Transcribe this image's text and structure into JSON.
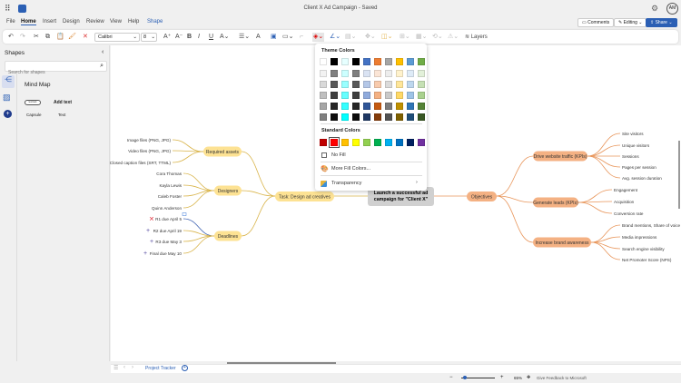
{
  "app": {
    "title": "Client X Ad Campaign - Saved",
    "avatar": "AM"
  },
  "menu": [
    "File",
    "Home",
    "Insert",
    "Design",
    "Review",
    "View",
    "Help",
    "Shape"
  ],
  "actions": {
    "comments": "Comments",
    "editing": "Editing",
    "share": "Share"
  },
  "toolbar": {
    "font": "Calibri",
    "size": "8",
    "layers": "Layers"
  },
  "shapes_panel": {
    "title": "Shapes",
    "search_placeholder": "Search for shapes",
    "category": "Mind Map",
    "items": [
      {
        "preview": "text text",
        "label": "Capsule"
      },
      {
        "preview": "Add text",
        "label": "Text"
      }
    ]
  },
  "fill_menu": {
    "theme_title": "Theme Colors",
    "theme_colors": [
      [
        "#ffffff",
        "#000000",
        "#e6ffff",
        "#000000",
        "#4472c4",
        "#ed7d31",
        "#a5a5a5",
        "#ffc000",
        "#5b9bd5",
        "#70ad47"
      ],
      [
        "#f2f2f2",
        "#808080",
        "#ccffff",
        "#7f7f7f",
        "#dae3f3",
        "#fbe5d6",
        "#ededed",
        "#fff2cc",
        "#deebf7",
        "#e2f0d9"
      ],
      [
        "#d9d9d9",
        "#595959",
        "#99ffff",
        "#595959",
        "#b4c7e7",
        "#f8cbad",
        "#dbdbdb",
        "#ffe699",
        "#bdd7ee",
        "#c5e0b4"
      ],
      [
        "#bfbfbf",
        "#404040",
        "#66ffff",
        "#3f3f3f",
        "#8faadc",
        "#f4b183",
        "#c9c9c9",
        "#ffd966",
        "#9dc3e6",
        "#a9d18e"
      ],
      [
        "#a6a6a6",
        "#262626",
        "#33ffff",
        "#262626",
        "#2f5597",
        "#c55a11",
        "#7b7b7b",
        "#bf9000",
        "#2e75b6",
        "#548235"
      ],
      [
        "#808080",
        "#0d0d0d",
        "#00ffff",
        "#0c0c0c",
        "#1f3864",
        "#843c0c",
        "#525252",
        "#7f6000",
        "#1f4e79",
        "#385723"
      ]
    ],
    "standard_title": "Standard Colors",
    "standard_colors": [
      "#c00000",
      "#ff0000",
      "#ffc000",
      "#ffff00",
      "#92d050",
      "#00b050",
      "#00b0f0",
      "#0070c0",
      "#002060",
      "#7030a0"
    ],
    "selected_standard": "#ff0000",
    "no_fill": "No Fill",
    "more": "More Fill Colors...",
    "transparency": "Transparency"
  },
  "mindmap": {
    "central": [
      "Launch a successful ad",
      "campaign for \"Client X\""
    ],
    "task": {
      "label": "Task: Design ad creatives",
      "branches": [
        {
          "label": "Required assets",
          "leaves": [
            "Image files (PNG, JPG)",
            "Video files (PNG, JPG)",
            "Closed caption files (SRT, TTML)"
          ]
        },
        {
          "label": "Designers",
          "leaves": [
            "Cora Thomas",
            "Kayla Lewis",
            "Caleb Foster",
            "Quinn Anderson"
          ]
        },
        {
          "label": "Deadlines",
          "leaves": [
            "R1 due April 5",
            "R2 due April 19",
            "R3 due May 3",
            "Final due May 10"
          ]
        }
      ]
    },
    "objectives": {
      "label": "Objectives",
      "branches": [
        {
          "label": "Drive website traffic (KPIs)",
          "leaves": [
            "Site visitors",
            "Unique visitors",
            "Sessions",
            "Pages per session",
            "Avg. session duration"
          ]
        },
        {
          "label": "Generate leads (KPIs)",
          "leaves": [
            "Engagement",
            "Acquisition",
            "Conversion rate"
          ]
        },
        {
          "label": "Increase brand awareness",
          "leaves": [
            "Brand mentions, Share of voice",
            "Media impressions",
            "Search engine visibility",
            "Net Promoter Score (NPS)"
          ]
        }
      ]
    },
    "colors": {
      "yellow": "#fde293",
      "yellow_line": "#d9b44a",
      "orange": "#f4b183",
      "orange_line": "#e8955a",
      "central": "#d0d0d0"
    }
  },
  "footer": {
    "sheet_tab": "Project Tracker",
    "zoom": "65%",
    "feedback": "Give Feedback to Microsoft"
  }
}
